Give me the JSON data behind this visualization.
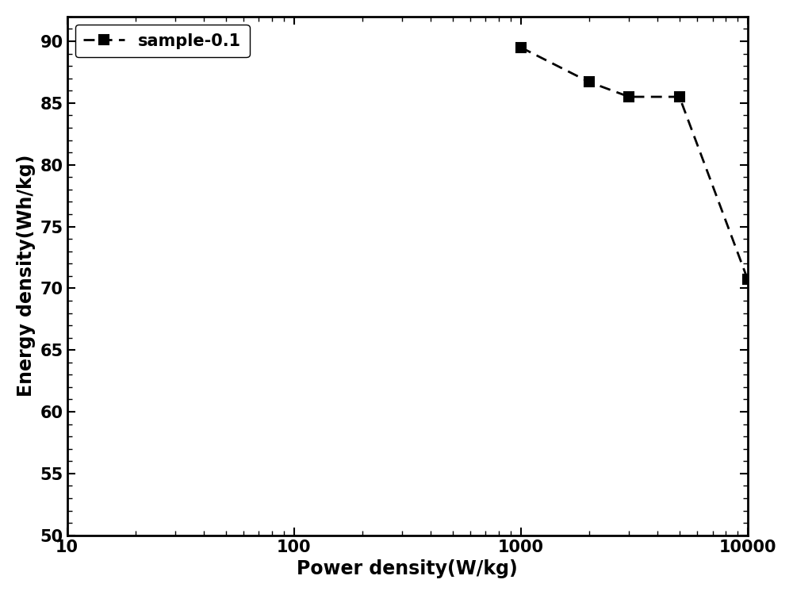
{
  "x": [
    1000,
    2000,
    3000,
    5000,
    10000
  ],
  "y": [
    89.5,
    86.7,
    85.5,
    85.5,
    70.7
  ],
  "line_color": "#000000",
  "marker": "s",
  "marker_size": 9,
  "marker_facecolor": "#000000",
  "linewidth": 2.0,
  "linestyle": "--",
  "label": "sample-0.1",
  "xlabel": "Power density(W/kg)",
  "ylabel": "Energy density(Wh/kg)",
  "xlim_log": [
    10,
    10000
  ],
  "ylim": [
    50,
    92
  ],
  "yticks": [
    50,
    55,
    60,
    65,
    70,
    75,
    80,
    85,
    90
  ],
  "xtick_vals": [
    10,
    100,
    1000,
    10000
  ],
  "label_fontsize": 17,
  "tick_fontsize": 15,
  "legend_fontsize": 15,
  "background_color": "#ffffff",
  "legend_loc": "upper left"
}
